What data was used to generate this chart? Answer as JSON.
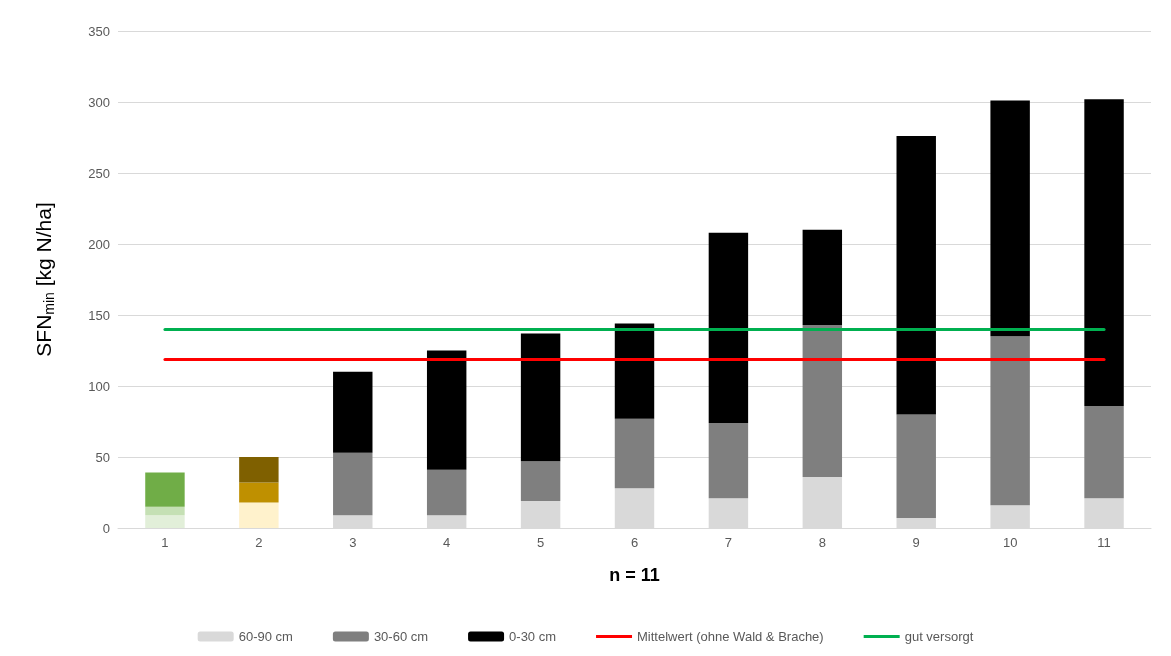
{
  "chart_data": {
    "type": "bar",
    "stacked": true,
    "xlabel": "n = 11",
    "ylabel": "SFN$_{min}$ [kg N/ha]",
    "categories": [
      "1",
      "2",
      "3",
      "4",
      "5",
      "6",
      "7",
      "8",
      "9",
      "10",
      "11"
    ],
    "series": [
      {
        "name": "60-90 cm",
        "color": "#d9d9d9",
        "values": [
          9,
          18,
          9,
          9,
          19,
          28,
          21,
          36,
          7,
          16,
          21
        ],
        "colors": [
          "#e2efd9",
          "#fff2cc",
          "#d9d9d9",
          "#d9d9d9",
          "#d9d9d9",
          "#d9d9d9",
          "#d9d9d9",
          "#d9d9d9",
          "#d9d9d9",
          "#d9d9d9",
          "#d9d9d9"
        ]
      },
      {
        "name": "30-60 cm",
        "color": "#7f7f7f",
        "values": [
          6,
          14,
          44,
          32,
          28,
          49,
          53,
          107,
          73,
          119,
          65
        ],
        "colors": [
          "#c5e0b4",
          "#bf9000",
          "#7f7f7f",
          "#7f7f7f",
          "#7f7f7f",
          "#7f7f7f",
          "#7f7f7f",
          "#7f7f7f",
          "#7f7f7f",
          "#7f7f7f",
          "#7f7f7f"
        ]
      },
      {
        "name": "0-30 cm",
        "color": "#000000",
        "values": [
          24,
          18,
          57,
          84,
          90,
          67,
          134,
          67,
          196,
          166,
          216
        ],
        "colors": [
          "#70ad47",
          "#7f6000",
          "#000000",
          "#000000",
          "#000000",
          "#000000",
          "#000000",
          "#000000",
          "#000000",
          "#000000",
          "#000000"
        ]
      }
    ],
    "ref_lines": [
      {
        "axis": "y",
        "value": 119,
        "label": "Mittelwert (ohne Wald & Brache)",
        "color": "#ff0000"
      },
      {
        "axis": "y",
        "value": 140,
        "label": "gut versorgt",
        "color": "#00b050"
      }
    ],
    "ylim": [
      0,
      350
    ],
    "yticks": [
      0,
      50,
      100,
      150,
      200,
      250,
      300,
      350
    ],
    "grid": "y",
    "legend": "bottom"
  }
}
